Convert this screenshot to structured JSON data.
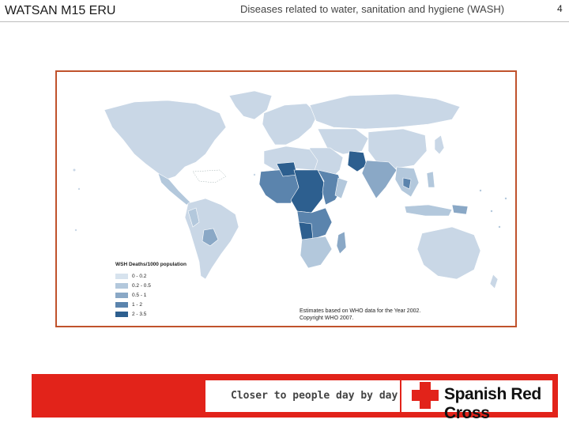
{
  "header": {
    "left_title": "WATSAN M15 ERU",
    "center_title": "Diseases related to water, sanitation and hygiene (WASH)",
    "slide_number": "4"
  },
  "map": {
    "legend": {
      "title": "WSH Deaths/1000 population",
      "items": [
        {
          "label": "0 - 0.2",
          "color": "#d7e3ee"
        },
        {
          "label": "0.2 - 0.5",
          "color": "#b3c8dc"
        },
        {
          "label": "0.5 - 1",
          "color": "#8aa8c6"
        },
        {
          "label": "1 - 2",
          "color": "#5b84ad"
        },
        {
          "label": "2 - 3.5",
          "color": "#2d5f8f"
        }
      ]
    },
    "credit_line1": "Estimates based on WHO data for the Year 2002.",
    "credit_line2": "Copyright WHO 2007.",
    "colors": {
      "frame": "#c0522c",
      "land_base": "#c9d7e6",
      "water": "#ffffff"
    }
  },
  "banner": {
    "slogan": "Closer to people day by day",
    "brand": "Spanish Red Cross",
    "colors": {
      "red": "#e2231a"
    }
  }
}
